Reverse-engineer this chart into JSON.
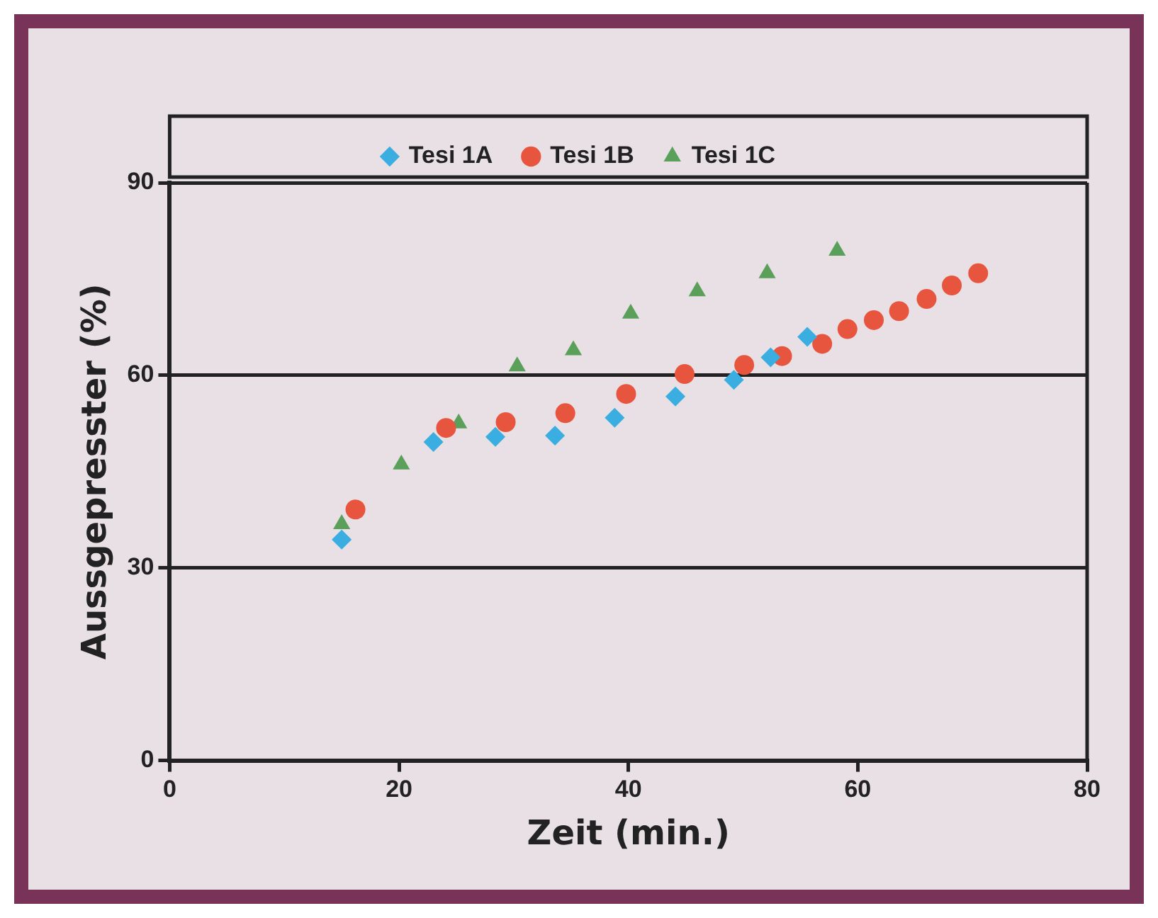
{
  "chart_data": {
    "type": "scatter",
    "xlabel": "Zeit (min.)",
    "ylabel": "Aussgepresster (%)",
    "xlim": [
      0,
      80
    ],
    "xticks": [
      0,
      20,
      40,
      60,
      80
    ],
    "ylim": [
      0,
      90
    ],
    "yticks": [
      0,
      30,
      60,
      90
    ],
    "grid": "y",
    "legend": "top",
    "series": [
      {
        "name": "Tesi 1A",
        "color": "#3aaee0",
        "marker": "diamond",
        "x": [
          15,
          23,
          28.4,
          33.6,
          38.8,
          44.1,
          49.2,
          52.4,
          55.6
        ],
        "values": [
          34.4,
          49.6,
          50.4,
          50.6,
          53.4,
          56.7,
          59.3,
          62.8,
          66
        ]
      },
      {
        "name": "Tesi 1B",
        "color": "#e8553e",
        "marker": "circle",
        "x": [
          16.2,
          24.1,
          29.3,
          34.5,
          39.8,
          44.9,
          50.1,
          53.4,
          56.9,
          59.1,
          61.4,
          63.6,
          66,
          68.2,
          70.5
        ],
        "values": [
          39.1,
          51.8,
          52.7,
          54.1,
          57.1,
          60.2,
          61.6,
          63,
          64.9,
          67.2,
          68.6,
          70,
          71.9,
          74,
          75.9
        ]
      },
      {
        "name": "Tesi 1C",
        "color": "#5aa05a",
        "marker": "triangle",
        "x": [
          15,
          20.2,
          25.2,
          30.3,
          35.2,
          40.2,
          46,
          52.1,
          58.2
        ],
        "values": [
          36.8,
          46.1,
          52.5,
          61.4,
          63.9,
          69.6,
          73.1,
          75.9,
          79.4
        ]
      }
    ]
  }
}
